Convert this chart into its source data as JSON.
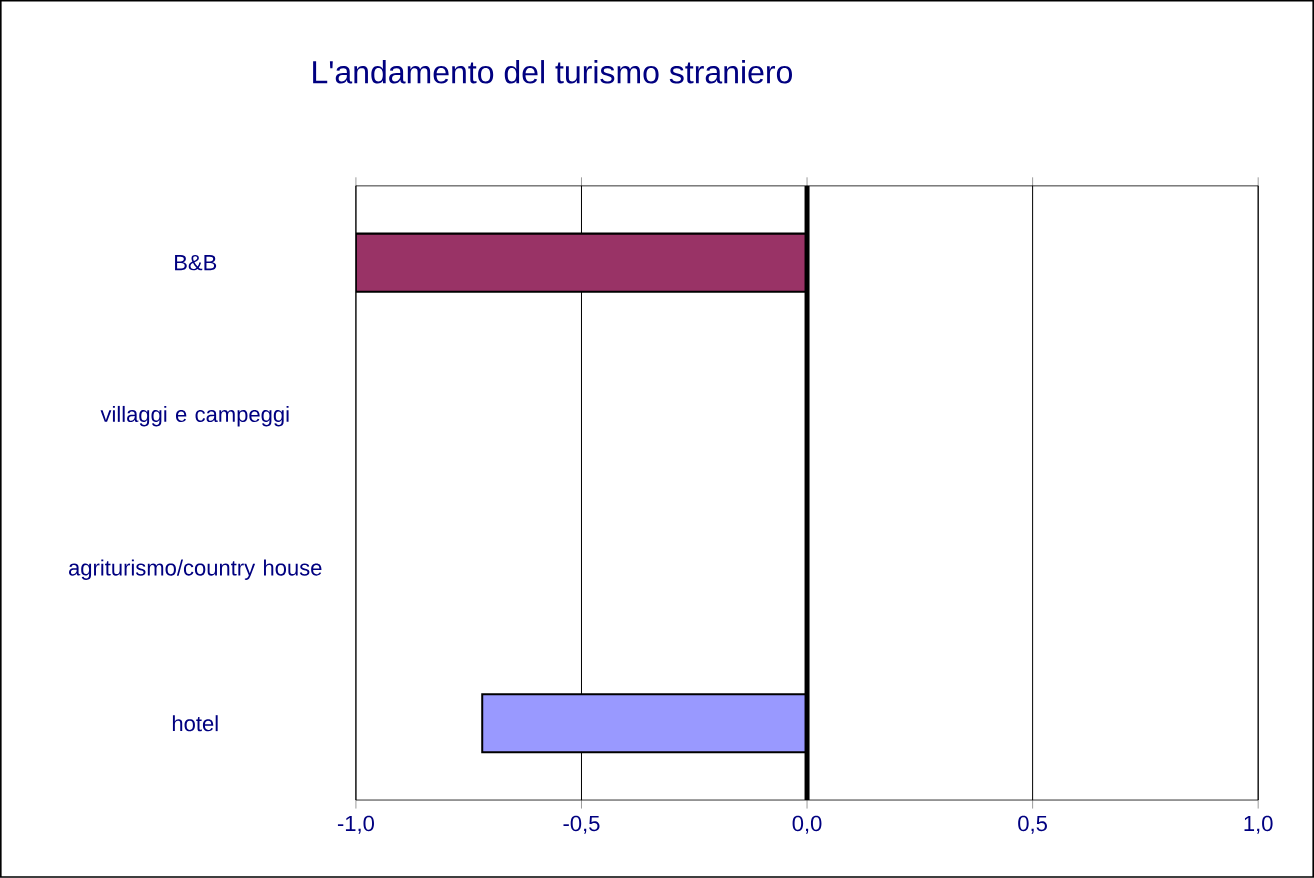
{
  "chart_data": {
    "type": "bar",
    "orientation": "horizontal",
    "title": "L'andamento del turismo straniero",
    "categories": [
      "B&B",
      "villaggi e campeggi",
      "agriturismo/country house",
      "hotel"
    ],
    "values": [
      -1.0,
      null,
      null,
      -0.72
    ],
    "colors": [
      "#993366",
      null,
      null,
      "#9999ff"
    ],
    "xlim": [
      -1.0,
      1.0
    ],
    "xticks": [
      {
        "value": -1.0,
        "label": "-1,0"
      },
      {
        "value": -0.5,
        "label": "-0,5"
      },
      {
        "value": 0.0,
        "label": "0,0"
      },
      {
        "value": 0.5,
        "label": "0,5"
      },
      {
        "value": 1.0,
        "label": "1,0"
      }
    ],
    "grid": "x"
  }
}
